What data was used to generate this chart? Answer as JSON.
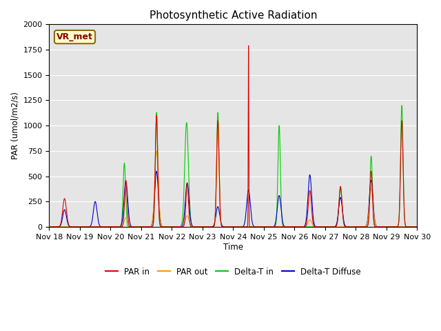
{
  "title": "Photosynthetic Active Radiation",
  "ylabel": "PAR (umol/m2/s)",
  "xlabel": "Time",
  "watermark_text": "VR_met",
  "ylim": [
    0,
    2000
  ],
  "xlim": [
    0,
    12
  ],
  "xtick_labels": [
    "Nov 18",
    "Nov 19",
    "Nov 20",
    "Nov 21",
    "Nov 22",
    "Nov 23",
    "Nov 24",
    "Nov 25",
    "Nov 26",
    "Nov 27",
    "Nov 28",
    "Nov 29",
    "Nov 30"
  ],
  "bg_color": "#e5e5e5",
  "grid_color": "#ffffff",
  "colors": {
    "PAR_in": "#dd0000",
    "PAR_out": "#ff9900",
    "Delta_T_in": "#00cc00",
    "Delta_T_Diffuse": "#0000cc"
  },
  "legend_labels": [
    "PAR in",
    "PAR out",
    "Delta-T in",
    "Delta-T Diffuse"
  ],
  "par_in_peaks": [
    280,
    0,
    460,
    1100,
    430,
    1050,
    1800,
    0,
    360,
    400,
    550,
    1050,
    0
  ],
  "par_out_peaks": [
    0,
    0,
    90,
    750,
    110,
    1030,
    0,
    0,
    70,
    0,
    375,
    0,
    0
  ],
  "delta_t_peaks": [
    0,
    0,
    630,
    1130,
    1030,
    1130,
    0,
    1000,
    0,
    380,
    700,
    1200,
    0
  ],
  "delta_d_peaks": [
    170,
    250,
    450,
    550,
    435,
    200,
    365,
    310,
    515,
    290,
    460,
    0,
    0
  ],
  "par_in_widths": [
    0.06,
    0,
    0.04,
    0.04,
    0.04,
    0.04,
    0.009,
    0,
    0.05,
    0.05,
    0.04,
    0.04,
    0
  ],
  "par_out_widths": [
    0,
    0,
    0.06,
    0.06,
    0.06,
    0.04,
    0,
    0,
    0.06,
    0,
    0.06,
    0,
    0
  ],
  "delta_t_widths": [
    0,
    0,
    0.04,
    0.04,
    0.06,
    0.04,
    0,
    0.04,
    0,
    0.05,
    0.04,
    0.04,
    0
  ],
  "delta_d_widths": [
    0.06,
    0.06,
    0.06,
    0.06,
    0.06,
    0.06,
    0.06,
    0.06,
    0.06,
    0.06,
    0.06,
    0,
    0
  ],
  "par_in_offsets": [
    0,
    0,
    0,
    0,
    0,
    0,
    0,
    0,
    0,
    0,
    0,
    0,
    0
  ],
  "par_out_offsets": [
    0,
    0,
    0,
    0,
    0,
    0,
    0,
    0,
    0,
    0,
    0,
    0,
    0
  ],
  "delta_t_offsets": [
    0,
    0,
    -0.05,
    0,
    -0.02,
    0,
    0,
    0,
    0,
    0,
    0,
    0,
    0
  ],
  "delta_d_offsets": [
    0,
    0,
    0,
    0,
    0,
    0,
    0,
    0,
    0,
    0,
    0,
    0,
    0
  ]
}
